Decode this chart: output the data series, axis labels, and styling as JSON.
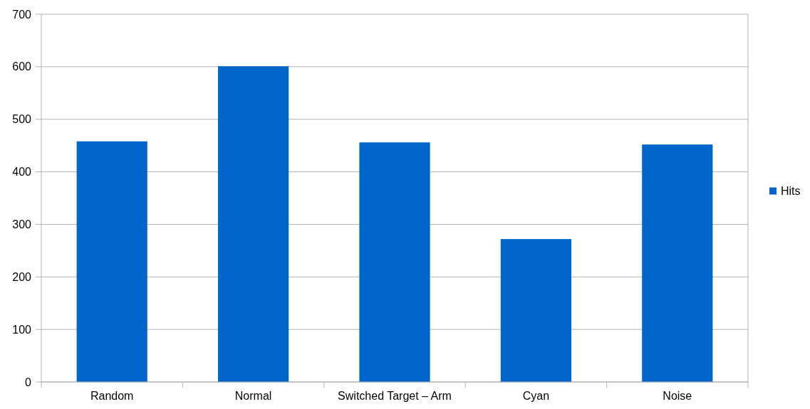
{
  "chart_data": {
    "type": "bar",
    "categories": [
      "Random",
      "Normal",
      "Switched Target – Arm",
      "Cyan",
      "Noise"
    ],
    "series": [
      {
        "name": "Hits",
        "color": "#0066cc",
        "values": [
          458,
          601,
          456,
          272,
          452
        ]
      }
    ],
    "ylim": [
      0,
      700
    ],
    "yticks": [
      0,
      100,
      200,
      300,
      400,
      500,
      600,
      700
    ],
    "grid": "y",
    "legend": "right"
  }
}
